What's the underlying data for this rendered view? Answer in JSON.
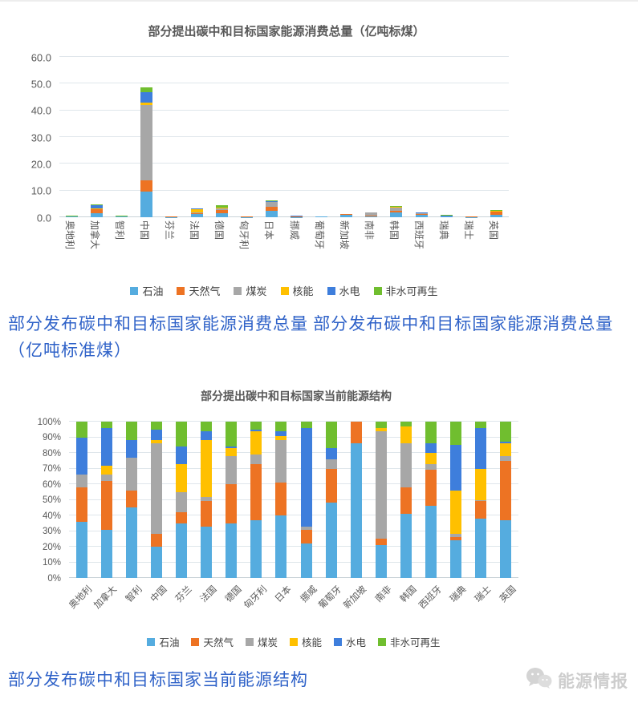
{
  "palette": {
    "axis_text": "#595959",
    "grid": "#dfe6eb",
    "caption_blue": "#2f62c8",
    "logo_gray": "#cdcdcd",
    "series_colors": [
      "#55acdf",
      "#ed7323",
      "#a7a7a7",
      "#ffc000",
      "#3e7edc",
      "#70be2f"
    ]
  },
  "legend": [
    "石油",
    "天然气",
    "煤炭",
    "核能",
    "水电",
    "非水可再生"
  ],
  "countries": [
    "奥地利",
    "加拿大",
    "智利",
    "中国",
    "芬兰",
    "法国",
    "德国",
    "匈牙利",
    "日本",
    "挪威",
    "葡萄牙",
    "新加坡",
    "南非",
    "韩国",
    "西班牙",
    "瑞典",
    "瑞士",
    "英国"
  ],
  "chart_data": [
    {
      "type": "bar",
      "stacked": true,
      "title": "部分提出碳中和目标国家能源消费总量（亿吨标煤）",
      "categories": [
        "奥地利",
        "加拿大",
        "智利",
        "中国",
        "芬兰",
        "法国",
        "德国",
        "匈牙利",
        "日本",
        "挪威",
        "葡萄牙",
        "新加坡",
        "南非",
        "韩国",
        "西班牙",
        "瑞典",
        "瑞士",
        "英国"
      ],
      "ylim": [
        0,
        60
      ],
      "yticks": [
        "0.0",
        "10.0",
        "20.0",
        "30.0",
        "40.0",
        "50.0",
        "60.0"
      ],
      "grid": "horizontal",
      "legend_position": "bottom",
      "series": [
        {
          "name": "石油",
          "values": [
            0.18,
            1.5,
            0.23,
            9.5,
            0.14,
            1.1,
            1.55,
            0.14,
            2.55,
            0.13,
            0.17,
            1.0,
            0.4,
            1.7,
            0.9,
            0.19,
            0.15,
            1.0
          ]
        },
        {
          "name": "天然气",
          "values": [
            0.11,
            1.4,
            0.06,
            4.2,
            0.03,
            0.55,
            1.1,
            0.13,
            1.35,
            0.05,
            0.08,
            0.2,
            0.08,
            0.7,
            0.45,
            0.02,
            0.04,
            1.05
          ]
        },
        {
          "name": "煤炭",
          "values": [
            0.04,
            0.2,
            0.11,
            28.2,
            0.05,
            0.1,
            0.8,
            0.02,
            1.7,
            0.01,
            0.02,
            0.0,
            1.3,
            1.2,
            0.08,
            0.02,
            0.0,
            0.08
          ]
        },
        {
          "name": "核能",
          "values": [
            0.0,
            0.3,
            0.0,
            1.0,
            0.07,
            1.25,
            0.2,
            0.06,
            0.2,
            0.0,
            0.0,
            0.0,
            0.04,
            0.45,
            0.13,
            0.22,
            0.08,
            0.22
          ]
        },
        {
          "name": "水电",
          "values": [
            0.12,
            1.1,
            0.05,
            3.8,
            0.04,
            0.2,
            0.05,
            0.0,
            0.2,
            0.38,
            0.02,
            0.0,
            0.0,
            0.0,
            0.11,
            0.23,
            0.1,
            0.02
          ]
        },
        {
          "name": "非水可再生",
          "values": [
            0.05,
            0.2,
            0.06,
            2.0,
            0.07,
            0.2,
            0.7,
            0.02,
            0.4,
            0.03,
            0.06,
            0.0,
            0.08,
            0.15,
            0.25,
            0.12,
            0.02,
            0.35
          ]
        }
      ]
    },
    {
      "type": "bar",
      "stacked": "percent",
      "title": "部分提出碳中和目标国家当前能源结构",
      "categories": [
        "奥地利",
        "加拿大",
        "智利",
        "中国",
        "芬兰",
        "法国",
        "德国",
        "匈牙利",
        "日本",
        "挪威",
        "葡萄牙",
        "新加坡",
        "南非",
        "韩国",
        "西班牙",
        "瑞典",
        "瑞士",
        "英国"
      ],
      "ylim": [
        0,
        100
      ],
      "yticks": [
        "0%",
        "10%",
        "20%",
        "30%",
        "40%",
        "50%",
        "60%",
        "70%",
        "80%",
        "90%",
        "100%"
      ],
      "grid": "horizontal",
      "legend_position": "bottom",
      "series": [
        {
          "name": "石油",
          "values": [
            36,
            31,
            45,
            20,
            35,
            33,
            35,
            37,
            40,
            22,
            48,
            86,
            21,
            41,
            46,
            24,
            38,
            37
          ]
        },
        {
          "name": "天然气",
          "values": [
            22,
            31,
            11,
            8,
            7,
            16,
            25,
            36,
            21,
            9,
            22,
            14,
            4,
            17,
            23,
            2,
            11,
            38
          ]
        },
        {
          "name": "煤炭",
          "values": [
            8,
            4,
            21,
            58,
            13,
            3,
            18,
            6,
            27,
            2,
            6,
            0,
            69,
            28,
            4,
            2,
            1,
            3
          ]
        },
        {
          "name": "核能",
          "values": [
            0,
            6,
            0,
            2,
            18,
            36,
            5,
            15,
            3,
            0,
            0,
            0,
            2,
            11,
            7,
            28,
            20,
            8
          ]
        },
        {
          "name": "水电",
          "values": [
            24,
            24,
            11,
            7,
            11,
            6,
            1,
            1,
            3,
            63,
            7,
            0,
            0,
            0,
            6,
            29,
            26,
            1
          ]
        },
        {
          "name": "非水可再生",
          "values": [
            10,
            4,
            12,
            5,
            16,
            6,
            16,
            5,
            6,
            4,
            17,
            0,
            4,
            3,
            14,
            15,
            4,
            13
          ]
        }
      ]
    }
  ],
  "captions": {
    "middle": "部分发布碳中和目标国家能源消费总量 部分发布碳中和目标国家能源消费总量 （亿吨标准煤）",
    "bottom": "部分发布碳中和目标国家当前能源结构"
  },
  "logo": {
    "icon": "wechat-bubbles-icon",
    "text": "能源情报"
  }
}
